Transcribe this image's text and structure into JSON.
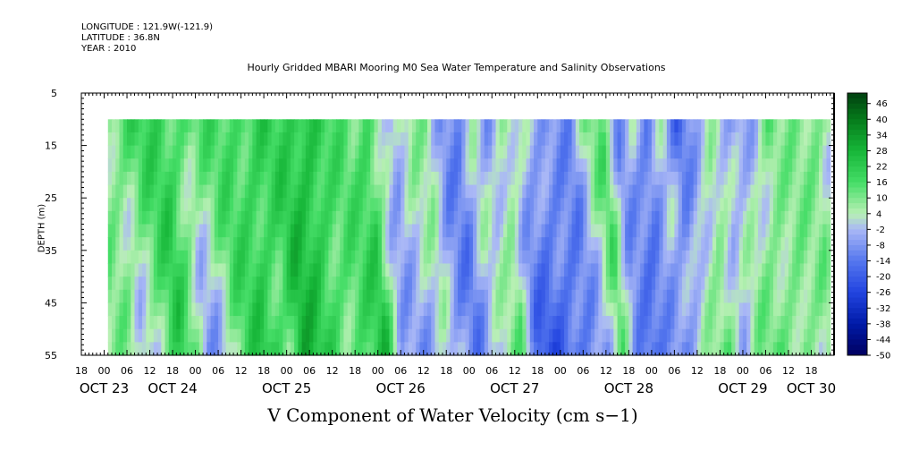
{
  "header": {
    "longitude": "LONGITUDE : 121.9W(-121.9)",
    "latitude": "LATITUDE : 36.8N",
    "year": "YEAR : 2010"
  },
  "chart_data": {
    "type": "heatmap",
    "title": "Hourly Gridded MBARI Mooring M0 Sea Water Temperature and Salinity Observations",
    "xlabel": "V Component of Water Velocity (cm s−1)",
    "ylabel": "DEPTH (m)",
    "y_range": [
      5,
      55
    ],
    "y_ticks": [
      5,
      15,
      25,
      35,
      45,
      55
    ],
    "data_depth_range": [
      10,
      55
    ],
    "x_range_hours": [
      -6,
      192
    ],
    "data_time_range_hours": [
      1,
      191
    ],
    "hour_tick_labels": [
      "18",
      "00",
      "06",
      "12",
      "18",
      "00",
      "06",
      "12",
      "18",
      "00",
      "06",
      "12",
      "18",
      "00",
      "06",
      "12",
      "18",
      "00",
      "06",
      "12",
      "18",
      "00",
      "06",
      "12",
      "18",
      "00",
      "06",
      "12",
      "18",
      "00",
      "06",
      "12",
      "18"
    ],
    "date_labels": [
      {
        "label": "OCT 23",
        "hour": 0
      },
      {
        "label": "OCT 24",
        "hour": 18
      },
      {
        "label": "OCT 25",
        "hour": 48
      },
      {
        "label": "OCT 26",
        "hour": 78
      },
      {
        "label": "OCT 27",
        "hour": 108
      },
      {
        "label": "OCT 28",
        "hour": 138
      },
      {
        "label": "OCT 29",
        "hour": 168
      },
      {
        "label": "OCT 30",
        "hour": 186
      }
    ],
    "colorbar": {
      "min": -50,
      "max": 50,
      "tick_labels": [
        "46",
        "40",
        "34",
        "28",
        "22",
        "16",
        "10",
        "4",
        "-2",
        "-8",
        "-14",
        "-20",
        "-26",
        "-32",
        "-38",
        "-44",
        "-50"
      ],
      "colors": [
        {
          "value": -50,
          "color": "#000060"
        },
        {
          "value": -38,
          "color": "#001aa8"
        },
        {
          "value": -26,
          "color": "#2244e0"
        },
        {
          "value": -14,
          "color": "#5577ee"
        },
        {
          "value": -2,
          "color": "#aab8f6"
        },
        {
          "value": 4,
          "color": "#b8f0b4"
        },
        {
          "value": 16,
          "color": "#44dd66"
        },
        {
          "value": 28,
          "color": "#16b638"
        },
        {
          "value": 40,
          "color": "#067a1a"
        },
        {
          "value": 50,
          "color": "#004010"
        }
      ]
    },
    "time_profile": [
      {
        "hour": 1,
        "surface": 10,
        "bottom": 8
      },
      {
        "hour": 4,
        "surface": 14,
        "bottom": -4
      },
      {
        "hour": 8,
        "surface": 18,
        "bottom": 6
      },
      {
        "hour": 14,
        "surface": 20,
        "bottom": 22
      },
      {
        "hour": 18,
        "surface": 16,
        "bottom": 6
      },
      {
        "hour": 21,
        "surface": 12,
        "bottom": -8
      },
      {
        "hour": 24,
        "surface": 14,
        "bottom": -6
      },
      {
        "hour": 30,
        "surface": 18,
        "bottom": 14
      },
      {
        "hour": 36,
        "surface": 16,
        "bottom": 24
      },
      {
        "hour": 42,
        "surface": 20,
        "bottom": 12
      },
      {
        "hour": 46,
        "surface": 18,
        "bottom": 30
      },
      {
        "hour": 52,
        "surface": 26,
        "bottom": 20
      },
      {
        "hour": 58,
        "surface": 16,
        "bottom": 12
      },
      {
        "hour": 64,
        "surface": 12,
        "bottom": 18
      },
      {
        "hour": 68,
        "surface": 18,
        "bottom": 24
      },
      {
        "hour": 72,
        "surface": 6,
        "bottom": -6
      },
      {
        "hour": 75,
        "surface": -8,
        "bottom": -4
      },
      {
        "hour": 80,
        "surface": 10,
        "bottom": -8
      },
      {
        "hour": 84,
        "surface": 12,
        "bottom": 0
      },
      {
        "hour": 88,
        "surface": -10,
        "bottom": -6
      },
      {
        "hour": 92,
        "surface": -14,
        "bottom": -12
      },
      {
        "hour": 96,
        "surface": 4,
        "bottom": -2
      },
      {
        "hour": 100,
        "surface": -6,
        "bottom": 6
      },
      {
        "hour": 104,
        "surface": 6,
        "bottom": 12
      },
      {
        "hour": 108,
        "surface": 2,
        "bottom": -18
      },
      {
        "hour": 112,
        "surface": -4,
        "bottom": -22
      },
      {
        "hour": 118,
        "surface": -6,
        "bottom": -16
      },
      {
        "hour": 122,
        "surface": -10,
        "bottom": -10
      },
      {
        "hour": 126,
        "surface": 8,
        "bottom": -4
      },
      {
        "hour": 130,
        "surface": 14,
        "bottom": 16
      },
      {
        "hour": 134,
        "surface": -8,
        "bottom": -14
      },
      {
        "hour": 138,
        "surface": 4,
        "bottom": -20
      },
      {
        "hour": 142,
        "surface": -14,
        "bottom": -6
      },
      {
        "hour": 146,
        "surface": 2,
        "bottom": -8
      },
      {
        "hour": 150,
        "surface": -18,
        "bottom": -2
      },
      {
        "hour": 154,
        "surface": -6,
        "bottom": 8
      },
      {
        "hour": 158,
        "surface": 4,
        "bottom": 14
      },
      {
        "hour": 162,
        "surface": -4,
        "bottom": -2
      },
      {
        "hour": 166,
        "surface": -6,
        "bottom": 10
      },
      {
        "hour": 170,
        "surface": -2,
        "bottom": 12
      },
      {
        "hour": 174,
        "surface": 12,
        "bottom": 8
      },
      {
        "hour": 178,
        "surface": 6,
        "bottom": 12
      },
      {
        "hour": 182,
        "surface": 10,
        "bottom": 4
      },
      {
        "hour": 186,
        "surface": 12,
        "bottom": 8
      },
      {
        "hour": 189,
        "surface": 6,
        "bottom": -8
      },
      {
        "hour": 191,
        "surface": 10,
        "bottom": -2
      }
    ]
  }
}
